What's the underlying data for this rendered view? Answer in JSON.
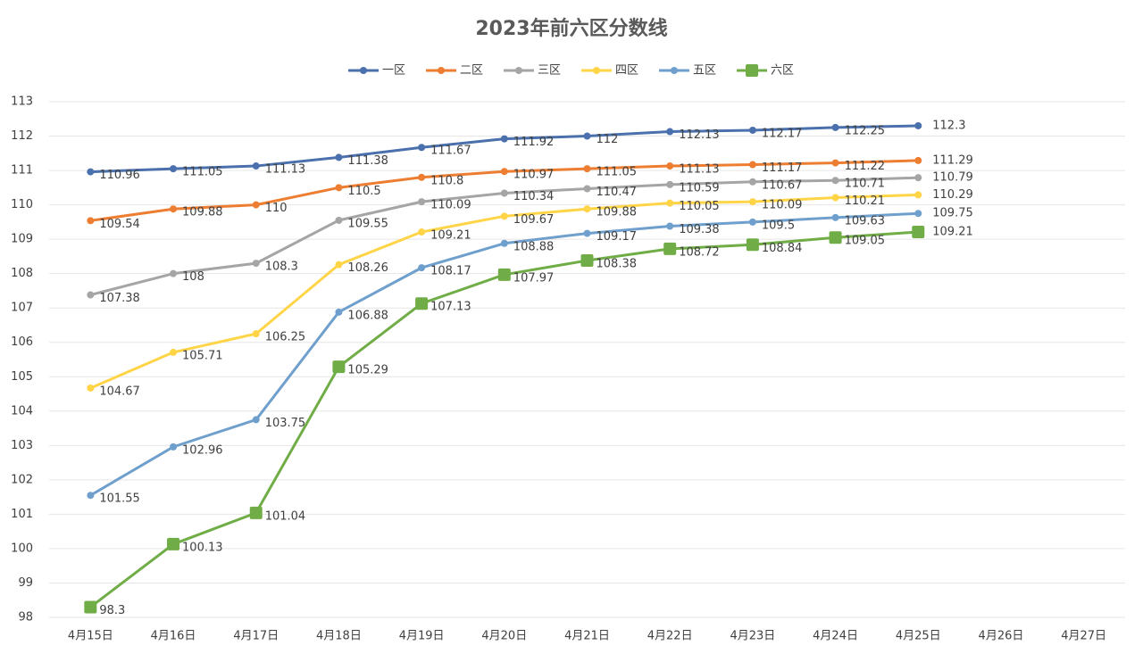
{
  "chart_data": {
    "type": "line",
    "title": "2023年前六区分数线",
    "categories": [
      "4月15日",
      "4月16日",
      "4月17日",
      "4月18日",
      "4月19日",
      "4月20日",
      "4月21日",
      "4月22日",
      "4月23日",
      "4月24日",
      "4月25日",
      "4月26日",
      "4月27日"
    ],
    "ylim": [
      98,
      113
    ],
    "yticks": [
      98,
      99,
      100,
      101,
      102,
      103,
      104,
      105,
      106,
      107,
      108,
      109,
      110,
      111,
      112,
      113
    ],
    "grid": true,
    "legend": "top",
    "series": [
      {
        "name": "一区",
        "color": "#4a70ad",
        "marker": "circle",
        "values": [
          110.96,
          111.05,
          111.13,
          111.38,
          111.67,
          111.92,
          112,
          112.13,
          112.17,
          112.25,
          112.3,
          null,
          null
        ]
      },
      {
        "name": "二区",
        "color": "#ed7d31",
        "marker": "circle",
        "values": [
          109.54,
          109.88,
          110,
          110.5,
          110.8,
          110.97,
          111.05,
          111.13,
          111.17,
          111.22,
          111.29,
          null,
          null
        ]
      },
      {
        "name": "三区",
        "color": "#a5a5a5",
        "marker": "circle",
        "values": [
          107.38,
          108,
          108.3,
          109.55,
          110.09,
          110.34,
          110.47,
          110.59,
          110.67,
          110.71,
          110.79,
          null,
          null
        ]
      },
      {
        "name": "四区",
        "color": "#ffd447",
        "marker": "circle",
        "values": [
          104.67,
          105.71,
          106.25,
          108.26,
          109.21,
          109.67,
          109.88,
          110.05,
          110.09,
          110.21,
          110.29,
          null,
          null
        ]
      },
      {
        "name": "五区",
        "color": "#6f9fcc",
        "marker": "circle",
        "values": [
          101.55,
          102.96,
          103.75,
          106.88,
          108.17,
          108.88,
          109.17,
          109.38,
          109.5,
          109.63,
          109.75,
          null,
          null
        ]
      },
      {
        "name": "六区",
        "color": "#70ad47",
        "marker": "square",
        "values": [
          98.3,
          100.13,
          101.04,
          105.29,
          107.13,
          107.97,
          108.38,
          108.72,
          108.84,
          109.05,
          109.21,
          null,
          null
        ]
      }
    ]
  }
}
